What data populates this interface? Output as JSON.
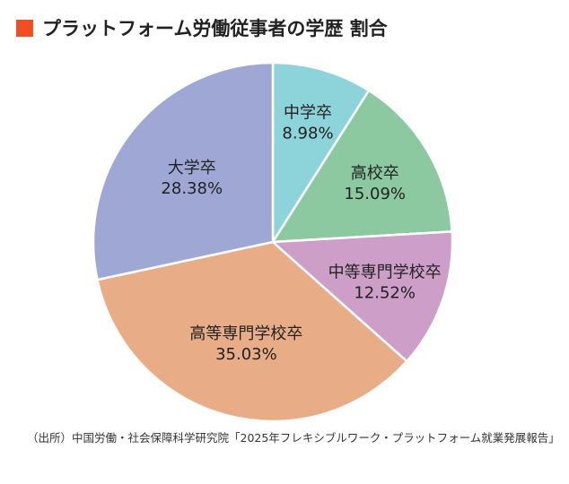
{
  "title": "プラットフォーム労働従事者の学歴 割合",
  "title_marker_color": "#f04e23",
  "source": "（出所）中国労働・社会保障科学研究院「2025年フレキシブルワーク・プラットフォーム就業発展報告」",
  "chart_data": {
    "type": "pie",
    "title": "プラットフォーム労働従事者の学歴 割合",
    "start": "12 o'clock",
    "direction": "clockwise",
    "slices": [
      {
        "label": "中学卒",
        "value": 8.98,
        "value_label": "8.98%",
        "color": "#8dd4da"
      },
      {
        "label": "高校卒",
        "value": 15.09,
        "value_label": "15.09%",
        "color": "#8cc9a0"
      },
      {
        "label": "中等専門学校卒",
        "value": 12.52,
        "value_label": "12.52%",
        "color": "#cc9ec8"
      },
      {
        "label": "高等専門学校卒",
        "value": 35.03,
        "value_label": "35.03%",
        "color": "#e8ad86"
      },
      {
        "label": "大学卒",
        "value": 28.38,
        "value_label": "28.38%",
        "color": "#9fa8d4"
      }
    ]
  }
}
